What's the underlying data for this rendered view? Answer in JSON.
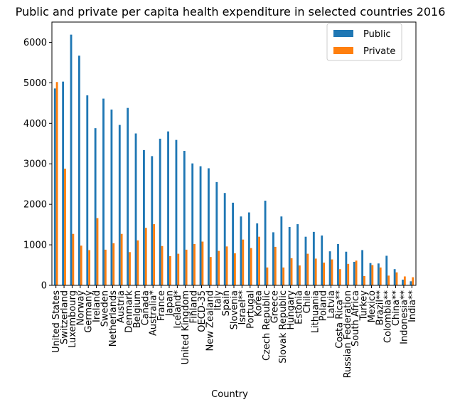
{
  "chart_data": {
    "type": "bar",
    "title": "Public and private per capita health expenditure in selected countries 2016",
    "xlabel": "Country",
    "ylabel": "",
    "ylim": [
      0,
      6500
    ],
    "yticks": [
      0,
      1000,
      2000,
      3000,
      4000,
      5000,
      6000
    ],
    "grid": false,
    "legend": "top-right",
    "categories": [
      "United States",
      "Switzerland",
      "Luxembourg",
      "Norway",
      "Germany",
      "Ireland",
      "Sweden",
      "Netherlands",
      "Austria",
      "Denmark",
      "Belgium",
      "Canada",
      "Australia*",
      "France",
      "Japan",
      "Iceland*",
      "United Kingdom",
      "Finland",
      "OECD-35",
      "New Zealand",
      "Italy",
      "Spain",
      "Slovenia",
      "Israel**",
      "Portugal",
      "Korea",
      "Czech Republic",
      "Greece",
      "Slovak Republic",
      "Hungary",
      "Estonia",
      "Chile",
      "Lithuania",
      "Poland",
      "Latvia",
      "Costa Rica**",
      "Russian Federation",
      "South Africa",
      "Turkey",
      "Mexico",
      "Brazil**",
      "Colombia**",
      "China**",
      "Indonesia**",
      "India**"
    ],
    "series": [
      {
        "name": "Public",
        "color": "#1f77b4",
        "values": [
          4860,
          5030,
          6190,
          5670,
          4690,
          3880,
          4610,
          4340,
          3960,
          4380,
          3750,
          3340,
          3190,
          3620,
          3800,
          3590,
          3320,
          3010,
          2940,
          2890,
          2550,
          2280,
          2040,
          1700,
          1800,
          1530,
          2090,
          1310,
          1700,
          1440,
          1510,
          1200,
          1320,
          1230,
          840,
          1020,
          830,
          580,
          870,
          550,
          540,
          730,
          400,
          140,
          100
        ]
      },
      {
        "name": "Private",
        "color": "#ff7f0e",
        "values": [
          5020,
          2880,
          1270,
          980,
          870,
          1660,
          880,
          1040,
          1270,
          820,
          1110,
          1420,
          1510,
          970,
          720,
          780,
          880,
          1020,
          1080,
          700,
          850,
          960,
          790,
          1130,
          920,
          1200,
          440,
          950,
          440,
          670,
          490,
          780,
          660,
          560,
          640,
          400,
          530,
          610,
          230,
          500,
          440,
          240,
          320,
          220,
          200
        ]
      }
    ]
  }
}
